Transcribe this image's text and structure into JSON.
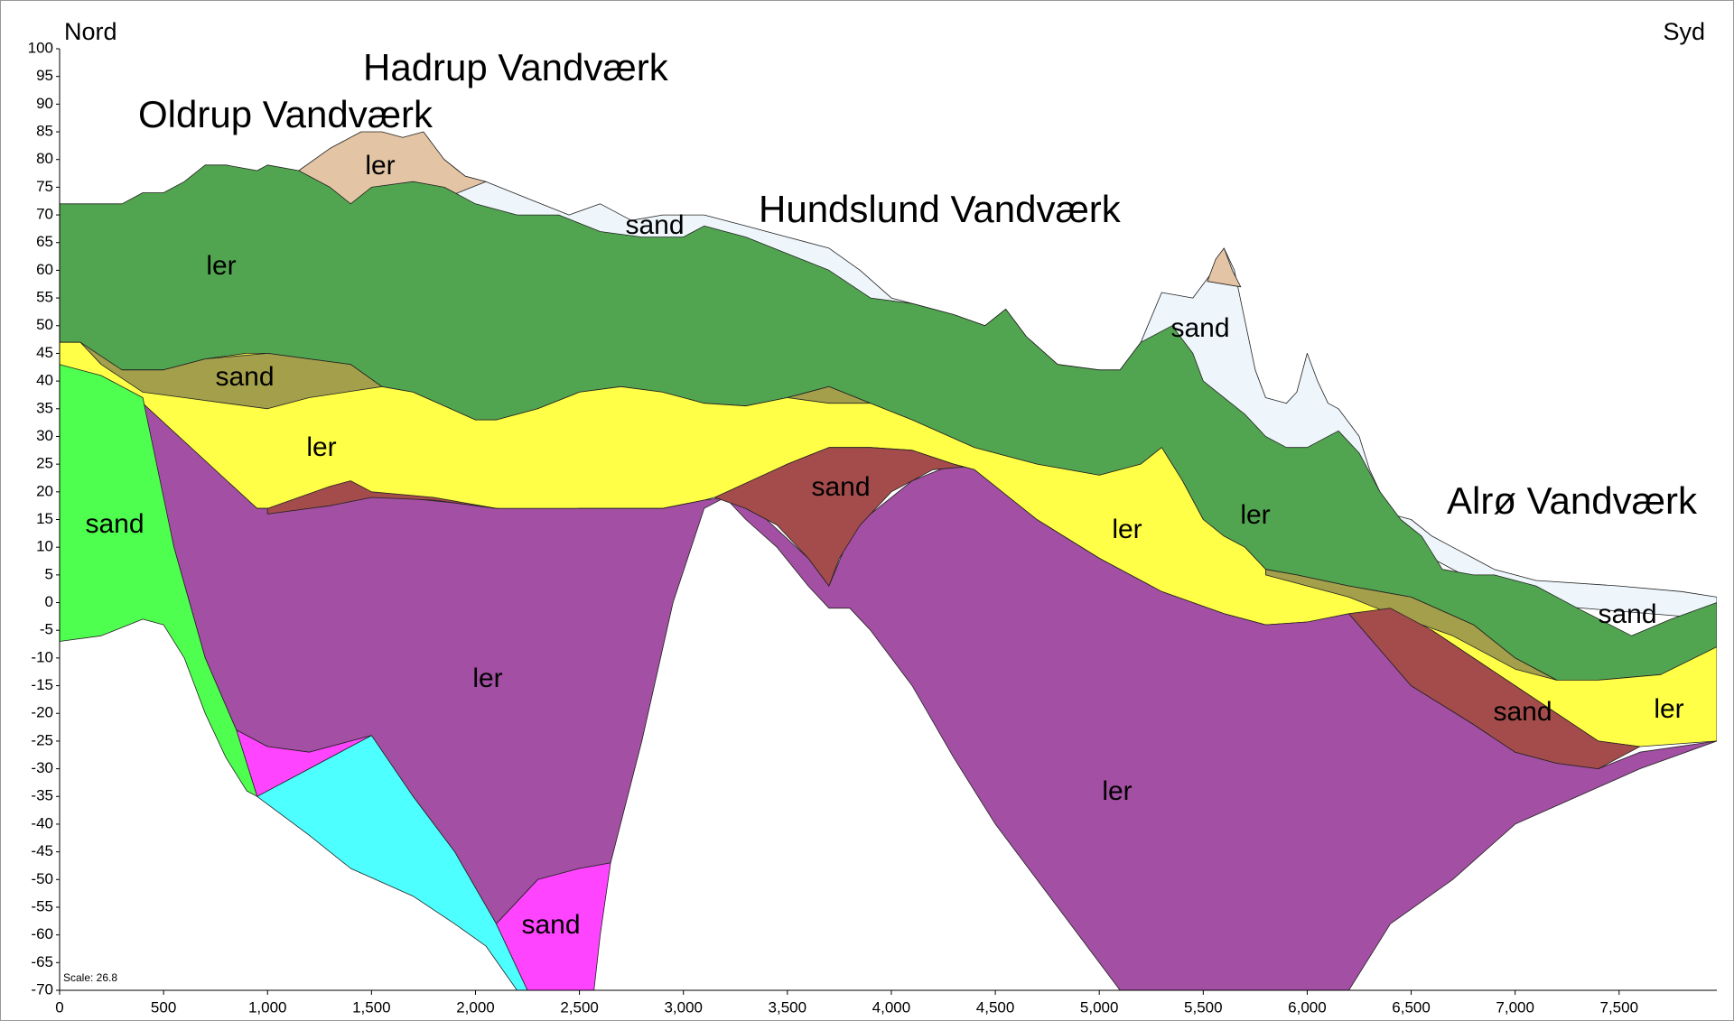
{
  "chart_data": {
    "type": "area",
    "annotations": {
      "north": "Nord",
      "south": "Syd",
      "oldrup": "Oldrup Vandværk",
      "hadrup": "Hadrup Vandværk",
      "hundslund": "Hundslund Vandværk",
      "alro": "Alrø Vandværk",
      "scale": "Scale: 26.8"
    },
    "xlim": [
      0,
      7970
    ],
    "ylim": [
      -70,
      100
    ],
    "xticks": [
      0,
      500,
      {
        "value": 1000,
        "label": "1,000"
      },
      {
        "value": 1500,
        "label": "1,500"
      },
      {
        "value": 2000,
        "label": "2,000"
      },
      {
        "value": 2500,
        "label": "2,500"
      },
      {
        "value": 3000,
        "label": "3,000"
      },
      {
        "value": 3500,
        "label": "3,500"
      },
      {
        "value": 4000,
        "label": "4,000"
      },
      {
        "value": 4500,
        "label": "4,500"
      },
      {
        "value": 5000,
        "label": "5,000"
      },
      {
        "value": 5500,
        "label": "5,500"
      },
      {
        "value": 6000,
        "label": "6,000"
      },
      {
        "value": 6500,
        "label": "6,500"
      },
      {
        "value": 7000,
        "label": "7,000"
      },
      {
        "value": 7500,
        "label": "7,500"
      }
    ],
    "yticks": [
      -70,
      -65,
      -60,
      -55,
      -50,
      -45,
      -40,
      -35,
      -30,
      -25,
      -20,
      -15,
      -10,
      -5,
      0,
      5,
      10,
      15,
      20,
      25,
      30,
      35,
      40,
      45,
      50,
      55,
      60,
      65,
      70,
      75,
      80,
      85,
      90,
      95,
      100
    ],
    "layers": [
      {
        "color": "#eef6fb",
        "labels": [
          "sand",
          "sand",
          "sand"
        ],
        "x": [
          1850,
          1950,
          2050,
          2250,
          2450,
          2600,
          2750,
          2900,
          3100,
          3300,
          3500,
          3700,
          3850,
          4000,
          4300,
          4450,
          4550,
          4650,
          4800,
          5000,
          5100,
          5200,
          5300,
          5450,
          5550,
          5600,
          5650,
          5750,
          5800,
          5900,
          5950,
          6000,
          6050,
          6100,
          6150,
          6250,
          6300,
          6400,
          6500,
          6600,
          6700,
          6800,
          6900,
          7100,
          7500,
          7800,
          7970,
          7970,
          7000,
          6000,
          5000,
          4000,
          3000,
          2000,
          1850
        ],
        "y": [
          80,
          77,
          76,
          73,
          70,
          72,
          69,
          70,
          70,
          68,
          66,
          64,
          60,
          55,
          52,
          50,
          53,
          48,
          43,
          42,
          42,
          47,
          56,
          55,
          60,
          64,
          60,
          42,
          37,
          36,
          38,
          45,
          40,
          36,
          35,
          30,
          24,
          16,
          15,
          12,
          10,
          8,
          6,
          4,
          3,
          2,
          1,
          -3,
          0,
          20,
          35,
          45,
          55,
          60,
          70
        ]
      },
      {
        "color": "#e3c4a4",
        "labels": [
          "ler"
        ],
        "x": [
          1150,
          1300,
          1450,
          1550,
          1650,
          1750,
          1850,
          1950,
          2050,
          1850,
          1700,
          1500,
          1400,
          1300
        ],
        "y": [
          78,
          82,
          85,
          85,
          84,
          85,
          80,
          77,
          76,
          73,
          74,
          73,
          70,
          74
        ]
      },
      {
        "color": "#e3c4a4",
        "x": [
          5520,
          5560,
          5600,
          5640,
          5680
        ],
        "y": [
          58,
          62,
          64,
          60,
          57
        ]
      },
      {
        "color": "#52a550",
        "labels": [
          "ler",
          "ler"
        ],
        "x": [
          0,
          200,
          300,
          400,
          500,
          600,
          700,
          800,
          950,
          1000,
          1150,
          1300,
          1400,
          1500,
          1700,
          1850,
          2000,
          2200,
          2400,
          2600,
          2800,
          3000,
          3100,
          3300,
          3500,
          3700,
          3900,
          4100,
          4300,
          4450,
          4550,
          4650,
          4800,
          5000,
          5100,
          5200,
          5350,
          5450,
          5500,
          5700,
          5800,
          5900,
          6000,
          6150,
          6250,
          6350,
          6450,
          6550,
          6650,
          6800,
          6900,
          7100,
          7300,
          7560,
          7750,
          7970,
          7970,
          7700,
          7400,
          7200,
          7000,
          6800,
          6500,
          6200,
          5950,
          5800,
          5700,
          5600,
          5500,
          5400,
          5300,
          5200,
          5000,
          4700,
          4400,
          4100,
          3900,
          3700,
          3500,
          3300,
          3100,
          2900,
          2700,
          2500,
          2300,
          2100,
          2000,
          1700,
          1550,
          1400,
          1200,
          1000,
          900,
          700,
          500,
          300,
          200,
          100,
          0
        ],
        "y": [
          72,
          72,
          72,
          74,
          74,
          76,
          79,
          79,
          78,
          79,
          78,
          75,
          72,
          75,
          76,
          75,
          72,
          70,
          70,
          67,
          66,
          66,
          68,
          66,
          63,
          60,
          55,
          54,
          52,
          50,
          53,
          48,
          43,
          42,
          42,
          47,
          50,
          45,
          40,
          34,
          30,
          28,
          28,
          31,
          27,
          20,
          15,
          12,
          6,
          5,
          5,
          3,
          -1,
          -6,
          -3,
          0,
          -8,
          -13,
          -14,
          -14,
          -10,
          -4,
          1,
          3,
          5,
          6,
          10,
          12,
          15,
          22,
          28,
          25,
          23,
          25,
          28,
          33,
          36,
          39,
          37,
          35.5,
          36,
          38,
          39,
          38,
          35,
          33,
          33,
          38,
          39,
          43,
          44,
          45,
          45,
          44,
          42,
          42,
          44,
          47,
          47
        ]
      },
      {
        "color": "#ffff47",
        "labels": [
          "ler",
          "ler",
          "ler"
        ],
        "x": [
          7970,
          7700,
          7400,
          7200,
          7000,
          6800,
          6500,
          6200,
          5950,
          5800,
          5700,
          5600,
          5500,
          5400,
          5300,
          5200,
          5000,
          4700,
          4400,
          4100,
          3900,
          3700,
          3500,
          3300,
          3100,
          2900,
          2700,
          2500,
          2300,
          2100,
          2000,
          1700,
          1550,
          1400,
          1200,
          1000,
          900,
          700,
          500,
          300,
          200,
          100,
          0,
          0,
          200,
          400,
          700,
          950,
          1100,
          1300,
          1500,
          1900,
          2100,
          2300,
          2500,
          2900,
          3100,
          3200,
          3500,
          3700,
          3900,
          4100,
          4300,
          4400,
          4700,
          5000,
          5300,
          5600,
          5800,
          6000,
          6600,
          7000,
          7400,
          7600,
          7970
        ],
        "y": [
          -8,
          -13,
          -14,
          -14,
          -10,
          -4,
          1,
          3,
          5,
          6,
          10,
          12,
          15,
          22,
          28,
          25,
          23,
          25,
          28,
          33,
          36,
          39,
          37,
          35.5,
          36,
          38,
          39,
          38,
          35,
          33,
          33,
          38,
          39,
          43,
          44,
          45,
          45,
          44,
          42,
          42,
          44,
          47,
          47,
          43,
          40,
          36,
          25,
          17,
          17,
          18,
          19.5,
          18,
          17,
          16.5,
          17,
          17,
          18.5,
          19.5,
          25,
          28,
          28,
          27.5,
          25,
          24,
          15,
          8,
          2,
          -2,
          -4,
          -3.5,
          -5,
          -15,
          -25,
          -26,
          -25
        ]
      },
      {
        "color": "#a34fa3",
        "labels": [
          "ler"
        ],
        "x": [
          400,
          950,
          1100,
          1300,
          1500,
          1900,
          2100,
          2500,
          2900,
          3100,
          3200,
          3100,
          2950,
          2800,
          2650,
          2500,
          2300,
          2100,
          1900,
          1700,
          1500,
          1400,
          1200,
          1000,
          850,
          700,
          550
        ],
        "y": [
          36,
          17,
          17,
          18,
          19.5,
          18,
          17,
          17,
          17,
          18.5,
          19,
          17,
          0,
          -25,
          -47,
          -48,
          -50,
          -58,
          -45,
          -35,
          -24,
          -25,
          -27,
          -26,
          -23,
          -10,
          10
        ]
      },
      {
        "color": "#a34fa3",
        "labels": [
          "ler"
        ],
        "x": [
          3200,
          3400,
          3600,
          3700,
          3800,
          3900,
          4100,
          4300,
          4400,
          4700,
          5000,
          5300,
          5600,
          5800,
          6000,
          6200,
          6500,
          6800,
          7000,
          7200,
          7400,
          7600,
          7970,
          7600,
          7300,
          7000,
          6700,
          6400,
          6200,
          5100,
          4900,
          4700,
          4500,
          4300,
          4100,
          3900,
          3800,
          3700,
          3600,
          3450,
          3300
        ],
        "y": [
          19,
          15,
          8,
          3,
          12,
          16,
          22,
          25,
          24,
          15,
          8,
          2,
          -2,
          -4,
          -3.5,
          -2,
          -15,
          -22,
          -27,
          -29,
          -30,
          -27,
          -25,
          -30,
          -35,
          -40,
          -50,
          -58,
          -70,
          -70,
          -60,
          -50,
          -40,
          -28,
          -15,
          -5,
          -1,
          -1,
          3,
          10,
          15
        ]
      },
      {
        "color": "#a39f4b",
        "labels": [
          "sand"
        ],
        "x": [
          100,
          300,
          500,
          700,
          1000,
          1200,
          1400,
          1550,
          1200,
          1000,
          800,
          600,
          400,
          200
        ],
        "y": [
          47,
          42,
          42,
          44,
          45,
          44,
          43,
          39,
          37,
          35,
          36,
          37,
          38,
          43
        ]
      },
      {
        "color": "#a39f4b",
        "x": [
          3500,
          3700,
          3900,
          3700
        ],
        "y": [
          37,
          39,
          36,
          36
        ]
      },
      {
        "color": "#a39f4b",
        "x": [
          5800,
          5950,
          6200,
          6500,
          6800,
          7000,
          7200,
          7000,
          6700,
          6400,
          6200,
          6000,
          5800
        ],
        "y": [
          6,
          5,
          3,
          1,
          -4,
          -10,
          -14,
          -12,
          -6,
          -2,
          1,
          3,
          5
        ]
      },
      {
        "color": "#a44b4b",
        "x": [
          1000,
          1300,
          1400,
          1500,
          1800,
          2100,
          1800,
          1500,
          1300,
          1000
        ],
        "y": [
          17,
          21,
          22,
          20,
          19,
          17,
          18.5,
          19,
          17.5,
          16
        ]
      },
      {
        "color": "#a44b4b",
        "labels": [
          "sand"
        ],
        "x": [
          3150,
          3500,
          3700,
          3900,
          4100,
          4300,
          4350,
          4200,
          4000,
          3850,
          3750,
          3700,
          3600,
          3450,
          3300
        ],
        "y": [
          19,
          25,
          28,
          28,
          27.5,
          25,
          24.5,
          24,
          20,
          14,
          8,
          3,
          8,
          14,
          17
        ]
      },
      {
        "color": "#a44b4b",
        "labels": [
          "sand"
        ],
        "x": [
          6200,
          6400,
          6600,
          7000,
          7400,
          7600,
          7500,
          7400,
          7200,
          7000,
          6800,
          6500
        ],
        "y": [
          -2,
          -1,
          -5,
          -15,
          -25,
          -26,
          -28,
          -30,
          -29,
          -27,
          -22,
          -15
        ]
      },
      {
        "color": "#ff44ff",
        "x": [
          850,
          1000,
          1200,
          1400,
          1500,
          1200,
          950
        ],
        "y": [
          -23,
          -26,
          -27,
          -25,
          -24,
          -30,
          -35
        ]
      },
      {
        "color": "#ff44ff",
        "labels": [
          "sand"
        ],
        "x": [
          2100,
          2300,
          2500,
          2650,
          2600,
          2570,
          2250
        ],
        "y": [
          -58,
          -50,
          -48,
          -47,
          -60,
          -70,
          -70
        ]
      },
      {
        "color": "#4dffff",
        "x": [
          950,
          1200,
          1400,
          1500,
          1700,
          1900,
          2100,
          2250,
          2200,
          2050,
          1900,
          1700,
          1400,
          1200
        ],
        "y": [
          -35,
          -30,
          -26,
          -24,
          -35,
          -45,
          -58,
          -70,
          -70,
          -62,
          -58,
          -53,
          -48,
          -42
        ]
      },
      {
        "color": "#4fff4f",
        "labels": [
          "sand"
        ],
        "x": [
          0,
          200,
          400,
          550,
          700,
          850,
          950,
          900,
          800,
          700,
          600,
          500,
          400,
          200,
          0
        ],
        "y": [
          43,
          41,
          37,
          10,
          -10,
          -23,
          -35,
          -34,
          -28,
          -20,
          -10,
          -4,
          -3,
          -6,
          -7
        ]
      }
    ]
  }
}
